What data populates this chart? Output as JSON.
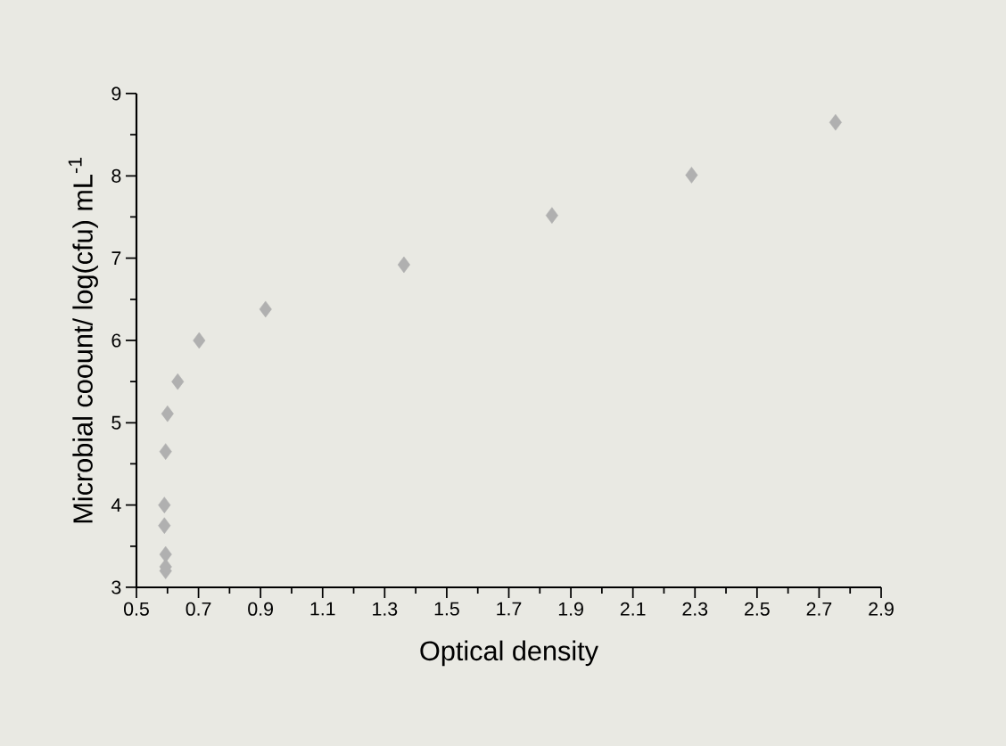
{
  "chart_data": {
    "type": "scatter",
    "xlabel": "Optical density",
    "ylabel": "Microbial coount/ log(cfu) mL$^{-1}$",
    "x": [
      0.594,
      0.594,
      0.594,
      0.59,
      0.59,
      0.594,
      0.6,
      0.633,
      0.702,
      0.916,
      1.362,
      1.839,
      2.289,
      2.753
    ],
    "values": [
      3.2,
      3.25,
      3.4,
      3.75,
      4.0,
      4.65,
      5.11,
      5.5,
      6.0,
      6.38,
      6.92,
      7.52,
      8.01,
      8.65
    ],
    "color": "#b0b0b0",
    "marker": "diamond",
    "xlim": [
      0.5,
      2.9
    ],
    "xticks": [
      0.5,
      0.7,
      0.9,
      1.1,
      1.3,
      1.5,
      1.7,
      1.9,
      2.1,
      2.3,
      2.5,
      2.7,
      2.9
    ],
    "ylim": [
      3,
      9
    ],
    "yticks": [
      3,
      4,
      5,
      6,
      7,
      8,
      9
    ]
  }
}
